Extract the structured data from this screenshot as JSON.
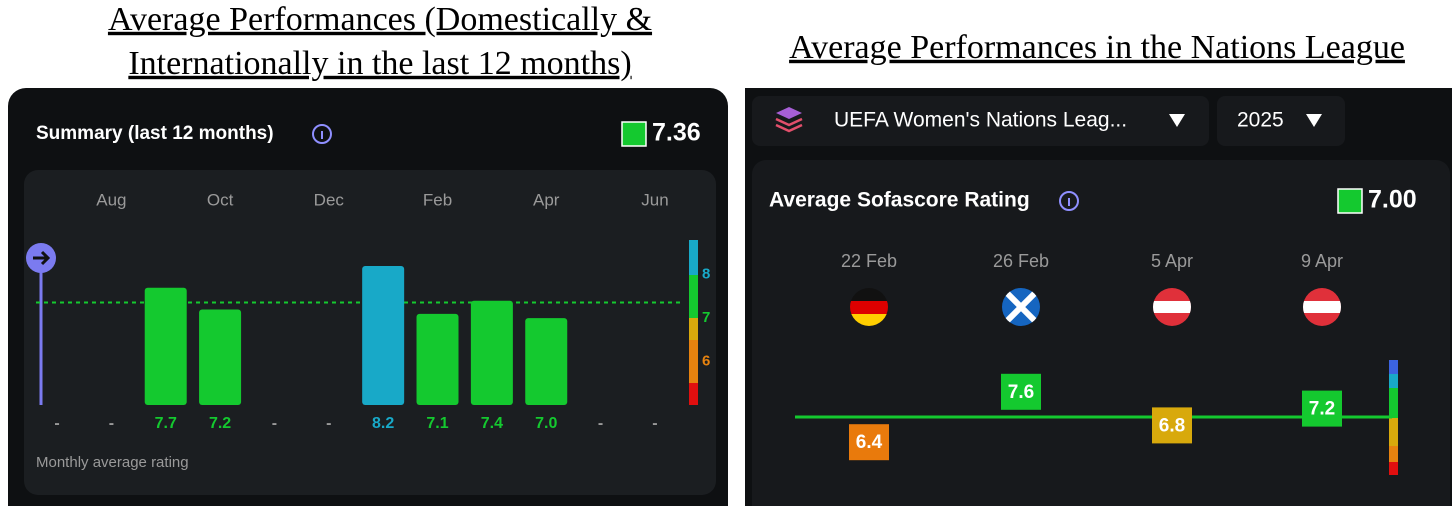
{
  "chart_data": [
    {
      "type": "bar",
      "title": [
        "Average Performances (Domestically &",
        "Internationally in the last 12 months)"
      ],
      "subtitle": "Summary (last 12 months)",
      "summary": 7.36,
      "categories": [
        null,
        "Aug",
        null,
        "Oct",
        null,
        "Dec",
        null,
        "Feb",
        null,
        "Apr",
        null,
        "Jun"
      ],
      "values": [
        null,
        null,
        7.7,
        7.2,
        null,
        null,
        8.2,
        7.1,
        7.4,
        7.0,
        null,
        null
      ],
      "value_labels": [
        "-",
        "-",
        "7.7",
        "7.2",
        "-",
        "-",
        "8.2",
        "7.1",
        "7.4",
        "7.0",
        "-",
        "-"
      ],
      "colors": [
        null,
        null,
        "#14c92f",
        "#14c92f",
        null,
        null,
        "#18a9c8",
        "#14c92f",
        "#14c92f",
        "#14c92f",
        null,
        null
      ],
      "ylim": [
        5,
        8.8
      ],
      "yticks": [
        6,
        7,
        8
      ],
      "ytick_colors": [
        "#e6820f",
        "#14c92f",
        "#18a9c8"
      ],
      "note": "Monthly average rating"
    },
    {
      "type": "rating",
      "title": [
        "Average Performances in the Nations League"
      ],
      "competition": "UEFA Women's Nations Leag...",
      "season": 2025,
      "subtitle": "Average Sofascore Rating",
      "summary": {
        "value": 7,
        "label": "7.00"
      },
      "categories": [
        "22 Feb",
        "26 Feb",
        "5 Apr",
        "9 Apr"
      ],
      "values": [
        6.4,
        7.6,
        6.8,
        7.2
      ],
      "colors": [
        "#e97a0c",
        "#14c92f",
        "#d8a90c",
        "#14c92f"
      ],
      "ylim": [
        6,
        8
      ]
    }
  ]
}
